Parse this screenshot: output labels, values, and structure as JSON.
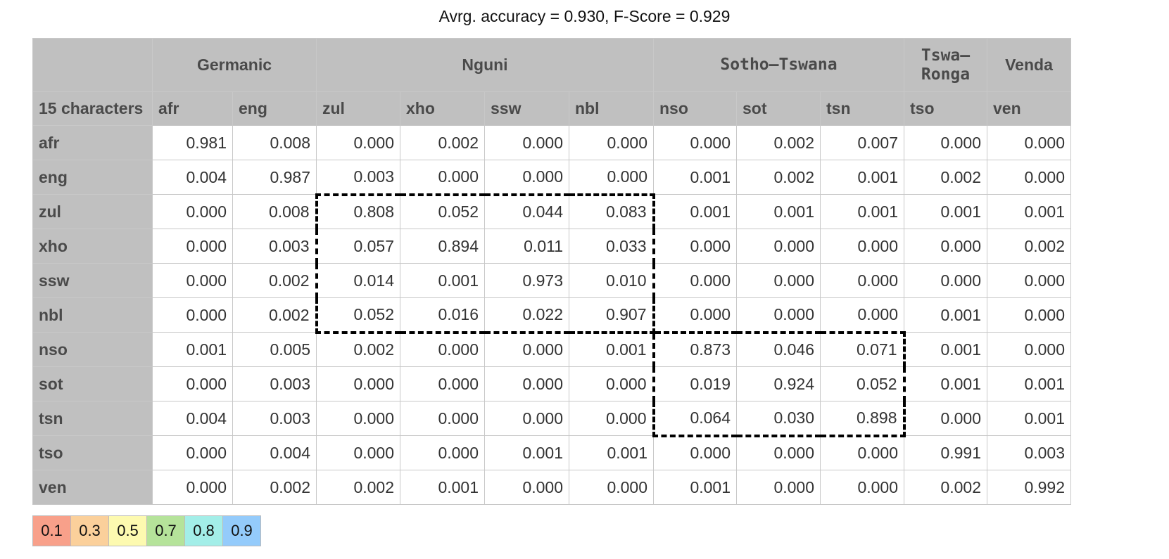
{
  "title": "Avrg. accuracy = 0.930, F-Score = 0.929",
  "chart_data": {
    "type": "heatmap",
    "title": "Avrg. accuracy = 0.930, F-Score = 0.929",
    "corner_label": "15 characters",
    "column_groups": [
      {
        "name": "Germanic",
        "span": 2,
        "mono": false
      },
      {
        "name": "Nguni",
        "span": 4,
        "mono": false
      },
      {
        "name": "Sotho–Tswana",
        "span": 3,
        "mono": true
      },
      {
        "name": "Tswa–\nRonga",
        "span": 1,
        "mono": true
      },
      {
        "name": "Venda",
        "span": 1,
        "mono": false
      }
    ],
    "columns": [
      "afr",
      "eng",
      "zul",
      "xho",
      "ssw",
      "nbl",
      "nso",
      "sot",
      "tsn",
      "tso",
      "ven"
    ],
    "rows": [
      "afr",
      "eng",
      "zul",
      "xho",
      "ssw",
      "nbl",
      "nso",
      "sot",
      "tsn",
      "tso",
      "ven"
    ],
    "values": [
      [
        "0.981",
        "0.008",
        "0.000",
        "0.002",
        "0.000",
        "0.000",
        "0.000",
        "0.002",
        "0.007",
        "0.000",
        "0.000"
      ],
      [
        "0.004",
        "0.987",
        "0.003",
        "0.000",
        "0.000",
        "0.000",
        "0.001",
        "0.002",
        "0.001",
        "0.002",
        "0.000"
      ],
      [
        "0.000",
        "0.008",
        "0.808",
        "0.052",
        "0.044",
        "0.083",
        "0.001",
        "0.001",
        "0.001",
        "0.001",
        "0.001"
      ],
      [
        "0.000",
        "0.003",
        "0.057",
        "0.894",
        "0.011",
        "0.033",
        "0.000",
        "0.000",
        "0.000",
        "0.000",
        "0.002"
      ],
      [
        "0.000",
        "0.002",
        "0.014",
        "0.001",
        "0.973",
        "0.010",
        "0.000",
        "0.000",
        "0.000",
        "0.000",
        "0.000"
      ],
      [
        "0.000",
        "0.002",
        "0.052",
        "0.016",
        "0.022",
        "0.907",
        "0.000",
        "0.000",
        "0.000",
        "0.001",
        "0.000"
      ],
      [
        "0.001",
        "0.005",
        "0.002",
        "0.000",
        "0.000",
        "0.001",
        "0.873",
        "0.046",
        "0.071",
        "0.001",
        "0.000"
      ],
      [
        "0.000",
        "0.003",
        "0.000",
        "0.000",
        "0.000",
        "0.000",
        "0.019",
        "0.924",
        "0.052",
        "0.001",
        "0.001"
      ],
      [
        "0.004",
        "0.003",
        "0.000",
        "0.000",
        "0.000",
        "0.000",
        "0.064",
        "0.030",
        "0.898",
        "0.000",
        "0.001"
      ],
      [
        "0.000",
        "0.004",
        "0.000",
        "0.000",
        "0.001",
        "0.001",
        "0.000",
        "0.000",
        "0.000",
        "0.991",
        "0.003"
      ],
      [
        "0.000",
        "0.002",
        "0.002",
        "0.001",
        "0.000",
        "0.000",
        "0.001",
        "0.000",
        "0.000",
        "0.002",
        "0.992"
      ]
    ],
    "highlight_blocks": [
      {
        "rows": [
          2,
          5
        ],
        "cols": [
          2,
          5
        ]
      },
      {
        "rows": [
          6,
          8
        ],
        "cols": [
          6,
          8
        ]
      }
    ],
    "legend": [
      {
        "label": "0.1",
        "color": "#f8a08a"
      },
      {
        "label": "0.3",
        "color": "#fbd09b"
      },
      {
        "label": "0.5",
        "color": "#fdfab0"
      },
      {
        "label": "0.7",
        "color": "#b5e39a"
      },
      {
        "label": "0.8",
        "color": "#a3eee8"
      },
      {
        "label": "0.9",
        "color": "#94cbfb"
      }
    ]
  }
}
